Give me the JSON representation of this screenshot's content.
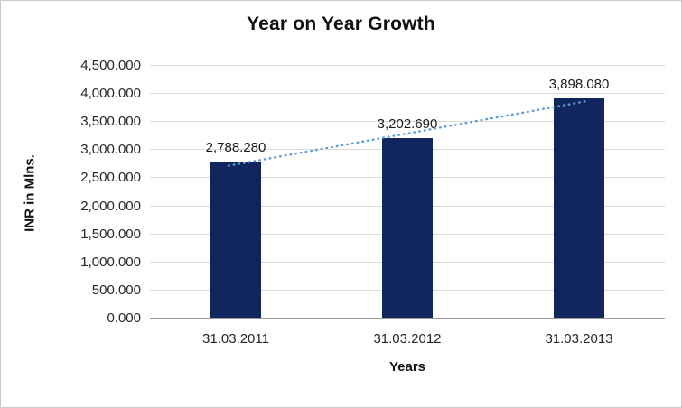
{
  "chart_data": {
    "type": "bar",
    "title": "Year on Year Growth",
    "xlabel": "Years",
    "ylabel": "INR in Mlns.",
    "categories": [
      "31.03.2011",
      "31.03.2012",
      "31.03.2013"
    ],
    "values": [
      2788.28,
      3202.69,
      3898.08
    ],
    "data_labels": [
      "2,788.280",
      "3,202.690",
      "3,898.080"
    ],
    "ylim": [
      0,
      4500
    ],
    "ytick_step": 500,
    "ytick_labels": [
      "0.000",
      "500.000",
      "1,000.000",
      "1,500.000",
      "2,000.000",
      "2,500.000",
      "3,000.000",
      "3,500.000",
      "4,000.000",
      "4,500.000"
    ],
    "grid": true,
    "legend": "none",
    "colors": {
      "bar": "#12265e",
      "trendline": "#5b9bd5",
      "gridline": "#d9d9d9",
      "axis_line": "#9b9b9b",
      "text": "#262626"
    },
    "trendline": {
      "type": "linear",
      "style": "dotted"
    }
  }
}
